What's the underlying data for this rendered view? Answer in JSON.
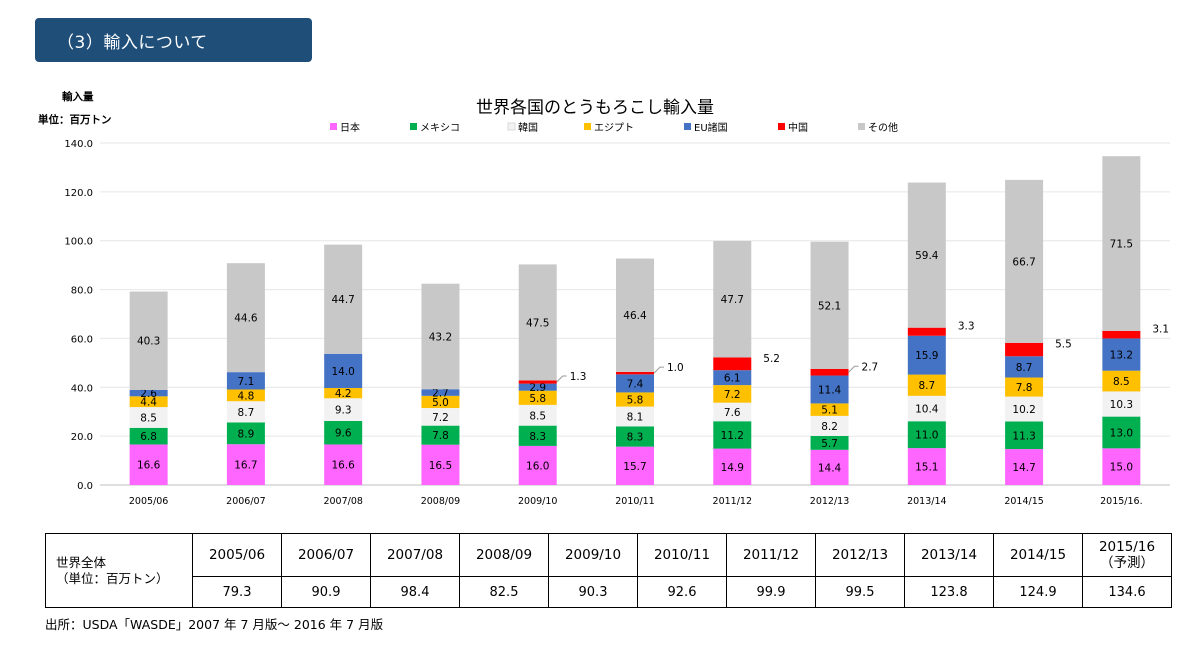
{
  "banner": {
    "text": "（3）輸入について"
  },
  "chart_data": {
    "type": "bar",
    "stacked": true,
    "title": "世界各国のとうもろこし輸入量",
    "ylabel_line1": "輸入量",
    "ylabel_line2": "単位：百万トン",
    "ylim": [
      0,
      140
    ],
    "yticks": [
      "0.0",
      "20.0",
      "40.0",
      "60.0",
      "80.0",
      "100.0",
      "120.0",
      "140.0"
    ],
    "legend_position": "top",
    "categories": [
      "2005/06",
      "2006/07",
      "2007/08",
      "2008/09",
      "2009/10",
      "2010/11",
      "2011/12",
      "2012/13",
      "2013/14",
      "2014/15",
      "2015/16."
    ],
    "series": [
      {
        "name": "日本",
        "color": "#ff66ff",
        "values": [
          16.6,
          16.7,
          16.6,
          16.5,
          16.0,
          15.7,
          14.9,
          14.4,
          15.1,
          14.7,
          15.0
        ]
      },
      {
        "name": "メキシコ",
        "color": "#00b050",
        "values": [
          6.8,
          8.9,
          9.6,
          7.8,
          8.3,
          8.3,
          11.2,
          5.7,
          11.0,
          11.3,
          13.0
        ]
      },
      {
        "name": "韓国",
        "color": "#f2f2f2",
        "values": [
          8.5,
          8.7,
          9.3,
          7.2,
          8.5,
          8.1,
          7.6,
          8.2,
          10.4,
          10.2,
          10.3
        ]
      },
      {
        "name": "エジプト",
        "color": "#ffc000",
        "values": [
          4.4,
          4.8,
          4.2,
          5.0,
          5.8,
          5.8,
          7.2,
          5.1,
          8.7,
          7.8,
          8.5
        ]
      },
      {
        "name": "EU諸国",
        "color": "#4472c4",
        "values": [
          2.6,
          7.1,
          14.0,
          2.7,
          2.9,
          7.4,
          6.1,
          11.4,
          15.9,
          8.7,
          13.2
        ]
      },
      {
        "name": "中国",
        "color": "#ff0000",
        "values": [
          null,
          null,
          null,
          null,
          1.3,
          1.0,
          5.2,
          2.7,
          3.3,
          5.5,
          3.1
        ]
      },
      {
        "name": "その他",
        "color": "#c8c8c8",
        "values": [
          40.3,
          44.6,
          44.7,
          43.2,
          47.5,
          46.4,
          47.7,
          52.1,
          59.4,
          66.7,
          71.5
        ]
      }
    ]
  },
  "table": {
    "label_line1": "世界全体",
    "label_line2": "（単位：百万トン）",
    "headers": [
      "2005/06",
      "2006/07",
      "2007/08",
      "2008/09",
      "2009/10",
      "2010/11",
      "2011/12",
      "2012/13",
      "2013/14",
      "2014/15",
      "2015/16"
    ],
    "last_header_note": "（予測）",
    "values": [
      "79.3",
      "90.9",
      "98.4",
      "82.5",
      "90.3",
      "92.6",
      "99.9",
      "99.5",
      "123.8",
      "124.9",
      "134.6"
    ]
  },
  "source": "出所：USDA「WASDE」2007 年 7 月版～ 2016 年 7 月版"
}
